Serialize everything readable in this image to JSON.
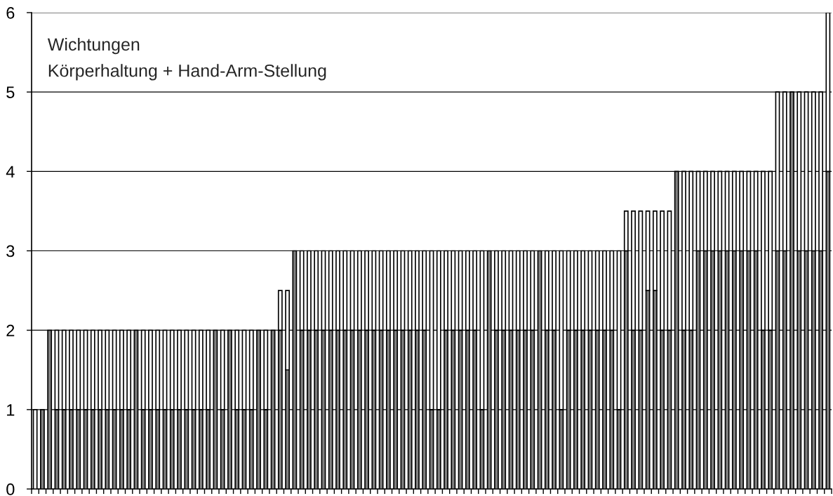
{
  "chart_data": {
    "type": "bar",
    "stacked": true,
    "title": "Wichtungen",
    "subtitle": "Körperhaltung + Hand-Arm-Stellung",
    "categories": [
      null,
      null,
      null,
      null,
      null,
      null,
      null,
      null,
      null,
      null,
      null,
      null,
      null,
      null,
      null,
      null,
      null,
      null,
      null,
      null,
      null,
      null,
      null,
      null,
      null,
      null,
      null,
      null,
      null,
      null,
      null,
      null,
      null,
      null,
      null,
      null,
      null,
      null,
      null,
      null,
      null,
      null,
      null,
      null,
      null,
      null,
      null,
      null,
      null,
      null,
      null,
      null,
      null,
      null,
      null,
      null,
      null,
      null,
      null,
      null,
      null,
      null,
      null,
      null,
      null,
      null,
      null,
      null,
      null,
      null,
      null,
      null,
      null,
      null,
      null,
      null,
      null,
      null,
      null,
      null,
      null,
      null,
      null,
      null,
      null,
      null,
      null,
      null,
      null,
      null,
      null,
      null,
      null,
      null,
      null,
      null,
      null,
      null,
      null,
      null,
      null,
      null,
      null,
      null,
      null,
      null,
      null,
      null,
      null,
      null,
      null
    ],
    "series": [
      {
        "color": "#808080",
        "values": [
          0,
          1,
          2,
          1,
          1,
          1,
          1,
          1,
          1,
          1,
          1,
          1,
          1,
          1,
          2,
          1,
          1,
          1,
          1,
          1,
          1,
          1,
          1,
          1,
          1,
          2,
          1,
          2,
          1,
          1,
          1,
          2,
          1,
          2,
          2,
          1.5,
          3,
          2,
          2,
          2,
          2,
          2,
          2,
          2,
          2,
          2,
          2,
          2,
          2,
          2,
          2,
          2,
          2,
          2,
          2,
          1,
          1,
          2,
          2,
          2,
          2,
          2,
          1,
          3,
          2,
          2,
          2,
          2,
          2,
          2,
          3,
          2,
          2,
          1,
          2,
          2,
          2,
          2,
          2,
          2,
          2,
          1,
          3,
          2,
          2,
          2.5,
          2.5,
          2,
          2,
          4,
          2,
          2,
          3,
          3,
          3,
          3,
          3,
          3,
          3,
          3,
          3,
          2,
          2,
          3,
          3,
          5,
          3,
          3,
          3,
          3,
          4
        ]
      },
      {
        "color": "#ffffff",
        "values": [
          1,
          0,
          0,
          1,
          1,
          1,
          1,
          1,
          1,
          1,
          1,
          1,
          1,
          1,
          0,
          1,
          1,
          1,
          1,
          1,
          1,
          1,
          1,
          1,
          1,
          0,
          1,
          0,
          1,
          1,
          1,
          0,
          1,
          0,
          0.5,
          1,
          0,
          1,
          1,
          1,
          1,
          1,
          1,
          1,
          1,
          1,
          1,
          1,
          1,
          1,
          1,
          1,
          1,
          1,
          1,
          2,
          2,
          1,
          1,
          1,
          1,
          1,
          2,
          0,
          1,
          1,
          1,
          1,
          1,
          1,
          0,
          1,
          1,
          2,
          1,
          1,
          1,
          1,
          1,
          1,
          1,
          2,
          0.5,
          1.5,
          1.5,
          1,
          1,
          1.5,
          1.5,
          0,
          2,
          2,
          1,
          1,
          1,
          1,
          1,
          1,
          1,
          1,
          1,
          2,
          2,
          2,
          2,
          0,
          2,
          2,
          2,
          2,
          2
        ]
      }
    ],
    "ylim": [
      0,
      6
    ],
    "yticks": [
      0,
      1,
      2,
      3,
      4,
      5,
      6
    ],
    "grid": "y",
    "tick_labels": "y"
  }
}
